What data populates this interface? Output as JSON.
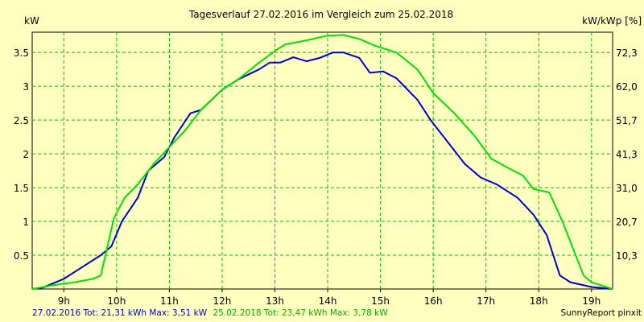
{
  "chart_data": {
    "type": "line",
    "title": "Tagesverlauf 27.02.2016 im Vergleich zum 25.02.2018",
    "ylabel_left": "kW",
    "ylabel_right": "kW/kWp [%]",
    "xlabel": "",
    "x_unit": "hour",
    "xlim": [
      8.4,
      19.4
    ],
    "ylim": [
      0,
      3.8
    ],
    "x_ticks": [
      {
        "value": 9,
        "label": "9h"
      },
      {
        "value": 10,
        "label": "10h"
      },
      {
        "value": 11,
        "label": "11h"
      },
      {
        "value": 12,
        "label": "12h"
      },
      {
        "value": 13,
        "label": "13h"
      },
      {
        "value": 14,
        "label": "14h"
      },
      {
        "value": 15,
        "label": "15h"
      },
      {
        "value": 16,
        "label": "16h"
      },
      {
        "value": 17,
        "label": "17h"
      },
      {
        "value": 18,
        "label": "18h"
      },
      {
        "value": 19,
        "label": "19h"
      }
    ],
    "y_ticks": [
      {
        "value": 0.5,
        "label": "0.5"
      },
      {
        "value": 1,
        "label": "1"
      },
      {
        "value": 1.5,
        "label": "1.5"
      },
      {
        "value": 2,
        "label": "2"
      },
      {
        "value": 2.5,
        "label": "2.5"
      },
      {
        "value": 3,
        "label": "3"
      },
      {
        "value": 3.5,
        "label": "3.5"
      }
    ],
    "y_ticks_right": [
      {
        "value": 0.5,
        "label": "10,3"
      },
      {
        "value": 1,
        "label": "20,7"
      },
      {
        "value": 1.5,
        "label": "31,0"
      },
      {
        "value": 2,
        "label": "41,3"
      },
      {
        "value": 2.5,
        "label": "51,7"
      },
      {
        "value": 3,
        "label": "62,0"
      },
      {
        "value": 3.5,
        "label": "72,3"
      }
    ],
    "grid": true,
    "series": [
      {
        "color": "#0000cc",
        "points": [
          [
            8.4,
            0
          ],
          [
            8.6,
            0.02
          ],
          [
            9.0,
            0.15
          ],
          [
            9.3,
            0.3
          ],
          [
            9.7,
            0.5
          ],
          [
            9.9,
            0.63
          ],
          [
            10.1,
            1.0
          ],
          [
            10.4,
            1.35
          ],
          [
            10.6,
            1.75
          ],
          [
            10.9,
            1.95
          ],
          [
            11.1,
            2.25
          ],
          [
            11.4,
            2.6
          ],
          [
            11.6,
            2.65
          ],
          [
            12.0,
            2.95
          ],
          [
            12.3,
            3.1
          ],
          [
            12.7,
            3.25
          ],
          [
            12.9,
            3.35
          ],
          [
            13.1,
            3.35
          ],
          [
            13.35,
            3.43
          ],
          [
            13.6,
            3.37
          ],
          [
            13.85,
            3.42
          ],
          [
            14.1,
            3.5
          ],
          [
            14.3,
            3.5
          ],
          [
            14.6,
            3.42
          ],
          [
            14.8,
            3.2
          ],
          [
            15.05,
            3.22
          ],
          [
            15.3,
            3.12
          ],
          [
            15.7,
            2.8
          ],
          [
            15.95,
            2.5
          ],
          [
            16.3,
            2.15
          ],
          [
            16.6,
            1.85
          ],
          [
            16.9,
            1.65
          ],
          [
            17.2,
            1.55
          ],
          [
            17.6,
            1.35
          ],
          [
            17.9,
            1.1
          ],
          [
            18.15,
            0.8
          ],
          [
            18.4,
            0.2
          ],
          [
            18.6,
            0.1
          ],
          [
            19.0,
            0.03
          ],
          [
            19.4,
            0
          ]
        ]
      },
      {
        "color": "#00e000",
        "points": [
          [
            8.4,
            0
          ],
          [
            8.75,
            0.05
          ],
          [
            9.2,
            0.1
          ],
          [
            9.55,
            0.15
          ],
          [
            9.7,
            0.2
          ],
          [
            9.95,
            1.05
          ],
          [
            10.15,
            1.35
          ],
          [
            10.4,
            1.55
          ],
          [
            10.7,
            1.85
          ],
          [
            11.0,
            2.1
          ],
          [
            11.3,
            2.35
          ],
          [
            11.6,
            2.65
          ],
          [
            12.0,
            2.95
          ],
          [
            12.3,
            3.1
          ],
          [
            12.7,
            3.35
          ],
          [
            13.05,
            3.55
          ],
          [
            13.2,
            3.62
          ],
          [
            13.6,
            3.68
          ],
          [
            14.0,
            3.75
          ],
          [
            14.3,
            3.76
          ],
          [
            14.6,
            3.7
          ],
          [
            14.9,
            3.6
          ],
          [
            15.3,
            3.5
          ],
          [
            15.7,
            3.25
          ],
          [
            16.0,
            2.9
          ],
          [
            16.4,
            2.6
          ],
          [
            16.8,
            2.25
          ],
          [
            17.1,
            1.93
          ],
          [
            17.4,
            1.8
          ],
          [
            17.7,
            1.68
          ],
          [
            17.9,
            1.48
          ],
          [
            18.2,
            1.43
          ],
          [
            18.45,
            1.0
          ],
          [
            18.7,
            0.5
          ],
          [
            18.85,
            0.2
          ],
          [
            19.0,
            0.1
          ],
          [
            19.4,
            0
          ]
        ]
      }
    ],
    "footer": {
      "s1": "27.02.2016 Tot: 21,31 kWh Max: 3,51 kW",
      "s2": "25.02.2018 Tot: 23,47 kWh Max: 3,78 kW",
      "brand": "SunnyReport pinxit"
    }
  },
  "colors": {
    "background": "#ffffc0",
    "grid": "#00c000",
    "axis": "#000000",
    "series_1": "#0000cc",
    "series_2": "#00e000"
  }
}
